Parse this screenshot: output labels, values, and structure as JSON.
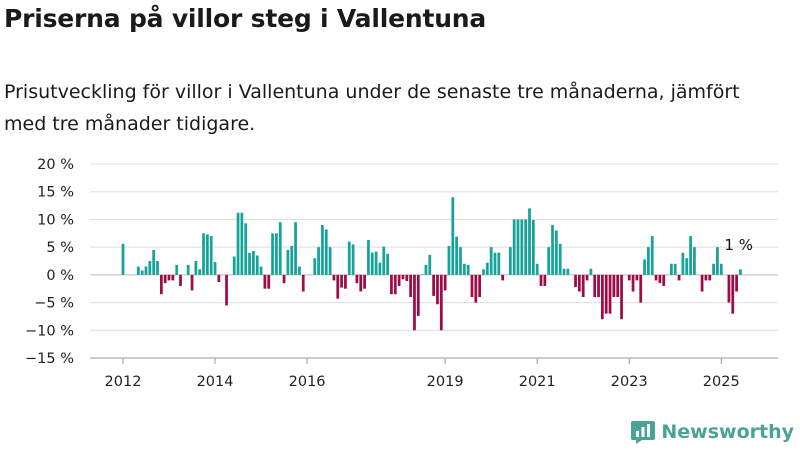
{
  "title": "Priserna på villor steg i Vallentuna",
  "subtitle": "Prisutveckling för villor i Vallentuna under de senaste tre månaderna, jämfört med tre månader tidigare.",
  "brand": "Newsworthy",
  "colors": {
    "positive": "#16a399",
    "negative": "#9e0c47",
    "grid": "#dddddd",
    "brand": "#4aa394"
  },
  "chart_data": {
    "type": "bar",
    "y_ticks": [
      "20 %",
      "15 %",
      "10 %",
      "5 %",
      "0 %",
      "−5 %",
      "−10 %",
      "−15 %"
    ],
    "ylim": [
      -15,
      20
    ],
    "grid": true,
    "x_ticks": [
      {
        "label": "2012",
        "year": 2012
      },
      {
        "label": "2014",
        "year": 2014
      },
      {
        "label": "2016",
        "year": 2016
      },
      {
        "label": "2019",
        "year": 2019
      },
      {
        "label": "2021",
        "year": 2021
      },
      {
        "label": "2023",
        "year": 2023
      },
      {
        "label": "2025",
        "year": 2025
      }
    ],
    "annotation": "1 %",
    "series": [
      {
        "start": "2012-01",
        "values": [
          5.6,
          0,
          0,
          0,
          1.5,
          0.8,
          1.5,
          2.5,
          4.5,
          2.5,
          -3.5,
          -1.5,
          -1,
          -1,
          1.8,
          -2,
          0,
          1.8,
          -2.8,
          2.5,
          1,
          7.5,
          7.3,
          7,
          2.3,
          -1.3,
          0,
          -5.5,
          0,
          3.3,
          11.2,
          11.2,
          9.3,
          4,
          4.3,
          3.5,
          1.5,
          -2.5,
          -2.5,
          7.5,
          7.5,
          9.5,
          -1.5,
          4.5,
          5.2,
          9.5,
          1.5,
          -3,
          0,
          0,
          3,
          5,
          9,
          8.2,
          5,
          -1,
          -4.3,
          -2.3,
          -2.5,
          6,
          5.5,
          -1.5,
          -3,
          -2.5,
          6.3,
          4,
          4.2,
          2.2,
          5.1,
          3.8,
          -3.5,
          -3.5,
          -2,
          -0.8,
          -1.1,
          -4,
          -10,
          -7.4,
          0.1,
          1.8,
          3.6,
          -3.8,
          -5.3,
          -10,
          -2.8,
          5.2,
          14,
          6.9,
          5,
          2,
          1.8,
          -4,
          -5,
          -4,
          1,
          2.2,
          5,
          4,
          4,
          -1,
          0,
          5,
          10,
          10,
          10,
          10,
          12,
          9.9,
          2,
          -2,
          -2,
          5,
          9,
          8,
          5.6,
          1.1,
          1.1,
          0,
          -2.2,
          -3,
          -4,
          -1,
          1.1,
          -4,
          -4,
          -8,
          -7,
          -7,
          -4,
          -4,
          -8,
          0,
          -1,
          -3,
          -1,
          -5,
          2.8,
          5,
          7,
          -1,
          -1.5,
          -2,
          0,
          2,
          2,
          -1,
          4,
          3,
          7,
          5,
          0,
          -3,
          -1,
          -1,
          2,
          5,
          2,
          0,
          -5,
          -7,
          -3,
          1
        ]
      }
    ]
  }
}
